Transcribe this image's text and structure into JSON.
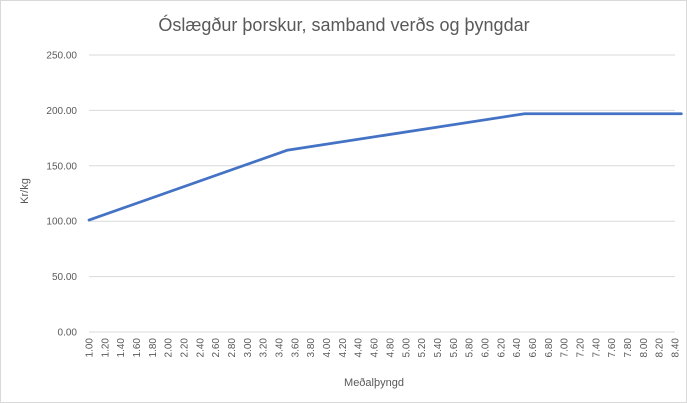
{
  "chart_data": {
    "type": "line",
    "title": "Óslægður þorskur, samband verðs og þyngdar",
    "xlabel": "Meðalþyngd",
    "ylabel": "Kr/kg",
    "ylim": [
      0,
      250
    ],
    "yticks": [
      "0.00",
      "50.00",
      "100.00",
      "150.00",
      "200.00",
      "250.00"
    ],
    "grid": true,
    "legend": "none",
    "color": "#4472c4",
    "x": [
      1.0,
      3.5,
      6.5,
      8.5
    ],
    "series": [
      {
        "values": [
          101,
          164,
          197,
          197
        ]
      }
    ],
    "xticks": [
      "1.00",
      "1.20",
      "1.40",
      "1.60",
      "1.80",
      "2.00",
      "2.20",
      "2.40",
      "2.60",
      "2.80",
      "3.00",
      "3.20",
      "3.40",
      "3.60",
      "3.80",
      "4.00",
      "4.20",
      "4.40",
      "4.60",
      "4.80",
      "5.00",
      "5.20",
      "5.40",
      "5.60",
      "5.80",
      "6.00",
      "6.20",
      "6.40",
      "6.60",
      "6.80",
      "7.00",
      "7.20",
      "7.40",
      "7.60",
      "7.80",
      "8.00",
      "8.20",
      "8.40"
    ]
  }
}
